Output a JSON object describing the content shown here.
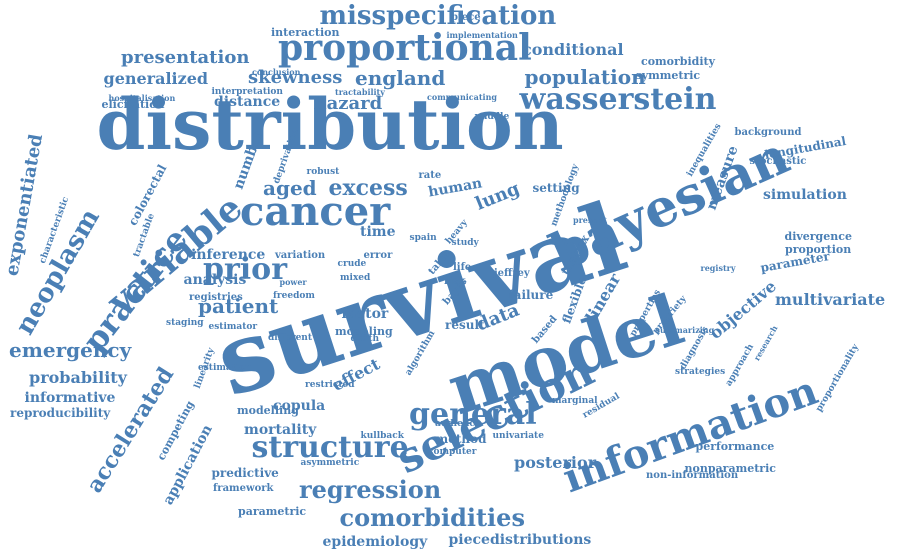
{
  "cloud": {
    "color": "#4a7fb5",
    "words": [
      {
        "text": "survival"
      },
      {
        "text": "model"
      },
      {
        "text": "distribution"
      },
      {
        "text": "bayesian"
      },
      {
        "text": "information"
      },
      {
        "text": "selection"
      },
      {
        "text": "cancer"
      },
      {
        "text": "proportional"
      },
      {
        "text": "wasserstein"
      },
      {
        "text": "structure"
      },
      {
        "text": "general"
      },
      {
        "text": "variable"
      },
      {
        "text": "misspecification"
      },
      {
        "text": "comorbidities"
      },
      {
        "text": "regression"
      },
      {
        "text": "prior"
      },
      {
        "text": "practice"
      },
      {
        "text": "neoplasm"
      },
      {
        "text": "exponentiated"
      },
      {
        "text": "accelerated"
      },
      {
        "text": "emergency"
      },
      {
        "text": "population"
      },
      {
        "text": "england"
      },
      {
        "text": "hazard"
      },
      {
        "text": "excess"
      },
      {
        "text": "presentation"
      },
      {
        "text": "skewness"
      },
      {
        "text": "generalized"
      },
      {
        "text": "patient"
      },
      {
        "text": "mortality"
      },
      {
        "text": "probability"
      },
      {
        "text": "epidemiology"
      },
      {
        "text": "piecedistributions"
      },
      {
        "text": "multivariate"
      },
      {
        "text": "conditional"
      },
      {
        "text": "posterior"
      },
      {
        "text": "aged"
      },
      {
        "text": "lung"
      },
      {
        "text": "data"
      },
      {
        "text": "linear"
      },
      {
        "text": "objective"
      },
      {
        "text": "simulation"
      },
      {
        "text": "parameter"
      },
      {
        "text": "effect"
      },
      {
        "text": "human"
      },
      {
        "text": "inference"
      },
      {
        "text": "analysis"
      },
      {
        "text": "distance"
      },
      {
        "text": "informative"
      },
      {
        "text": "reproducibility"
      },
      {
        "text": "application"
      },
      {
        "text": "competing"
      },
      {
        "text": "number"
      },
      {
        "text": "time"
      },
      {
        "text": "longitudinal"
      },
      {
        "text": "measure"
      },
      {
        "text": "comorbidity"
      },
      {
        "text": "symmetric"
      },
      {
        "text": "performance"
      },
      {
        "text": "proportion"
      },
      {
        "text": "divergence"
      },
      {
        "text": "factor"
      },
      {
        "text": "copula"
      },
      {
        "text": "flexible"
      },
      {
        "text": "failure"
      },
      {
        "text": "method"
      },
      {
        "text": "predictive"
      },
      {
        "text": "parametric"
      },
      {
        "text": "nonparametric"
      },
      {
        "text": "non-information"
      },
      {
        "text": "framework"
      },
      {
        "text": "colorectal"
      },
      {
        "text": "modelling"
      },
      {
        "text": "interaction"
      },
      {
        "text": "piece"
      },
      {
        "text": "elicitation"
      },
      {
        "text": "interpretation"
      },
      {
        "text": "background"
      },
      {
        "text": "stochastic"
      },
      {
        "text": "setting"
      },
      {
        "text": "result"
      },
      {
        "text": "registries"
      },
      {
        "text": "staging"
      },
      {
        "text": "estimator"
      },
      {
        "text": "variation"
      },
      {
        "text": "modeling"
      },
      {
        "text": "asymmetric"
      },
      {
        "text": "residual"
      },
      {
        "text": "marginal"
      },
      {
        "text": "proportionality"
      },
      {
        "text": "diagnosis"
      },
      {
        "text": "propriety"
      },
      {
        "text": "matrix"
      },
      {
        "text": "based"
      },
      {
        "text": "tractable"
      },
      {
        "text": "hospitalisation"
      },
      {
        "text": "deprivation"
      },
      {
        "text": "jeffrey"
      },
      {
        "text": "characteristic"
      },
      {
        "text": "linearity"
      },
      {
        "text": "estimation"
      },
      {
        "text": "different"
      },
      {
        "text": "death"
      },
      {
        "text": "restricted"
      },
      {
        "text": "audience"
      },
      {
        "text": "kullback"
      },
      {
        "text": "computer"
      },
      {
        "text": "univariate"
      },
      {
        "text": "crude"
      },
      {
        "text": "mixed"
      },
      {
        "text": "error"
      },
      {
        "text": "risk"
      },
      {
        "text": "life"
      },
      {
        "text": "study"
      },
      {
        "text": "bayes"
      },
      {
        "text": "table"
      },
      {
        "text": "spain"
      },
      {
        "text": "heavy"
      },
      {
        "text": "rate"
      },
      {
        "text": "robust"
      },
      {
        "text": "middle"
      },
      {
        "text": "conclusion"
      },
      {
        "text": "implementation"
      },
      {
        "text": "communicating"
      },
      {
        "text": "tractability"
      },
      {
        "text": "inequalities"
      },
      {
        "text": "algorithm"
      },
      {
        "text": "approach"
      },
      {
        "text": "strategies"
      },
      {
        "text": "summarizing"
      },
      {
        "text": "freedom"
      },
      {
        "text": "power"
      },
      {
        "text": "registry"
      },
      {
        "text": "methodology"
      },
      {
        "text": "present"
      },
      {
        "text": "research"
      },
      {
        "text": "properties"
      },
      {
        "text": "dynamic"
      }
    ]
  }
}
